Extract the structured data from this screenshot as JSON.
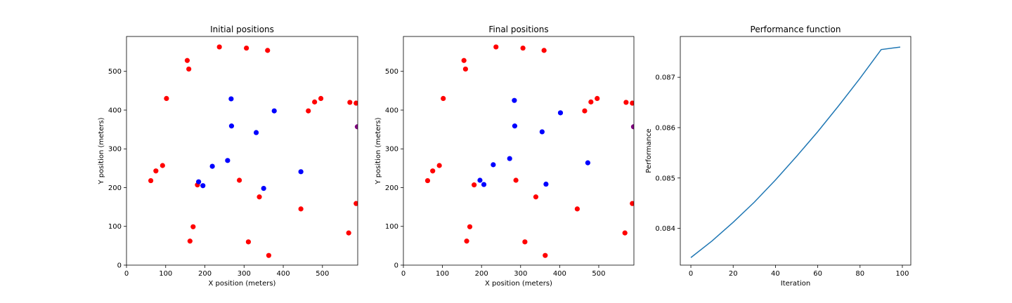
{
  "chart_data": [
    {
      "type": "scatter",
      "title": "Initial positions",
      "xlabel": "X position (meters)",
      "ylabel": "Y position (meters)",
      "xlim": [
        0,
        590
      ],
      "ylim": [
        0,
        590
      ],
      "xticks": [
        0,
        100,
        200,
        300,
        400,
        500
      ],
      "yticks": [
        0,
        100,
        200,
        300,
        400,
        500
      ],
      "series": [
        {
          "color": "#ff0000",
          "points": [
            [
              237,
              563
            ],
            [
              306,
              560
            ],
            [
              360,
              554
            ],
            [
              155,
              528
            ],
            [
              159,
              506
            ],
            [
              102,
              430
            ],
            [
              496,
              430
            ],
            [
              480,
              421
            ],
            [
              464,
              398
            ],
            [
              570,
              420
            ],
            [
              586,
              418
            ],
            [
              92,
              257
            ],
            [
              75,
              243
            ],
            [
              62,
              218
            ],
            [
              288,
              219
            ],
            [
              181,
              207
            ],
            [
              339,
              176
            ],
            [
              445,
              145
            ],
            [
              586,
              159
            ],
            [
              170,
              99
            ],
            [
              567,
              83
            ],
            [
              162,
              62
            ],
            [
              311,
              60
            ],
            [
              363,
              25
            ]
          ]
        },
        {
          "color": "#0000ff",
          "points": [
            [
              267,
              429
            ],
            [
              377,
              398
            ],
            [
              268,
              359
            ],
            [
              331,
              342
            ],
            [
              258,
              270
            ],
            [
              219,
              255
            ],
            [
              445,
              241
            ],
            [
              184,
              215
            ],
            [
              195,
              205
            ],
            [
              350,
              198
            ]
          ]
        },
        {
          "color": "#800080",
          "points": [
            [
              589,
              357
            ]
          ]
        }
      ]
    },
    {
      "type": "scatter",
      "title": "Final positions",
      "xlabel": "X position (meters)",
      "ylabel": "Y position (meters)",
      "xlim": [
        0,
        590
      ],
      "ylim": [
        0,
        590
      ],
      "xticks": [
        0,
        100,
        200,
        300,
        400,
        500
      ],
      "yticks": [
        0,
        100,
        200,
        300,
        400,
        500
      ],
      "series": [
        {
          "color": "#ff0000",
          "points": [
            [
              237,
              563
            ],
            [
              306,
              560
            ],
            [
              360,
              554
            ],
            [
              155,
              528
            ],
            [
              159,
              506
            ],
            [
              102,
              430
            ],
            [
              496,
              430
            ],
            [
              480,
              421
            ],
            [
              464,
              398
            ],
            [
              570,
              420
            ],
            [
              586,
              418
            ],
            [
              92,
              257
            ],
            [
              75,
              243
            ],
            [
              62,
              218
            ],
            [
              288,
              219
            ],
            [
              181,
              207
            ],
            [
              339,
              176
            ],
            [
              445,
              145
            ],
            [
              586,
              159
            ],
            [
              170,
              99
            ],
            [
              567,
              83
            ],
            [
              162,
              62
            ],
            [
              311,
              60
            ],
            [
              363,
              25
            ]
          ]
        },
        {
          "color": "#0000ff",
          "points": [
            [
              284,
              425
            ],
            [
              402,
              393
            ],
            [
              285,
              359
            ],
            [
              355,
              344
            ],
            [
              272,
              275
            ],
            [
              230,
              259
            ],
            [
              472,
              264
            ],
            [
              196,
              219
            ],
            [
              206,
              208
            ],
            [
              365,
              209
            ]
          ]
        },
        {
          "color": "#800080",
          "points": [
            [
              589,
              357
            ]
          ]
        }
      ]
    },
    {
      "type": "line",
      "title": "Performance function",
      "xlabel": "Iteration",
      "ylabel": "Performance",
      "xlim": [
        -5,
        104
      ],
      "ylim": [
        0.08327,
        0.08781
      ],
      "xticks": [
        0,
        20,
        40,
        60,
        80,
        100
      ],
      "yticks": [
        0.084,
        0.085,
        0.086,
        0.087
      ],
      "series": [
        {
          "color": "#1f77b4",
          "x": [
            0,
            10,
            20,
            30,
            40,
            50,
            60,
            70,
            80,
            90,
            99
          ],
          "y": [
            0.08342,
            0.08378,
            0.08418,
            0.08462,
            0.08509,
            0.0856,
            0.08613,
            0.08667,
            0.08722,
            0.08779,
            0.0876
          ]
        }
      ]
    }
  ]
}
